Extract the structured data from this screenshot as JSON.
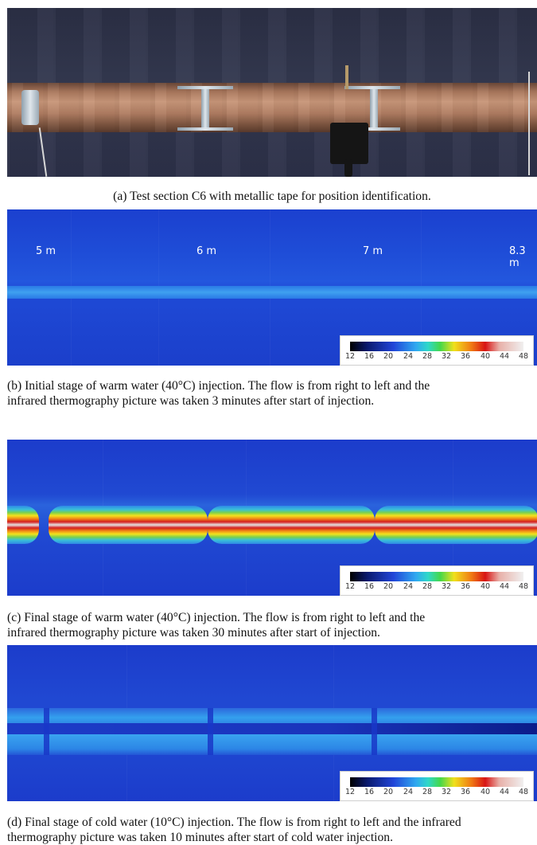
{
  "captions": {
    "a": "(a) Test section C6 with metallic tape for position identification.",
    "b": {
      "line1": "(b) Initial stage of warm water (40°C) injection.  The flow is from right to left and the",
      "line2": "infrared thermography picture was taken 3 minutes after start of injection."
    },
    "c": {
      "line1": "(c) Final stage of warm water (40°C) injection.  The flow is from right to left and the",
      "line2": "infrared thermography picture was taken 30 minutes after start of injection."
    },
    "d": {
      "line1": "(d) Final stage of cold water (10°C) injection. The flow is from right to left and the infrared",
      "line2": "thermography picture was taken 10 minutes after start of cold water injection."
    }
  },
  "position_labels": [
    "5 m",
    "6 m",
    "7 m",
    "8.3 m"
  ],
  "colorbar_ticks": [
    "12",
    "16",
    "20",
    "24",
    "28",
    "32",
    "36",
    "40",
    "44",
    "48"
  ]
}
